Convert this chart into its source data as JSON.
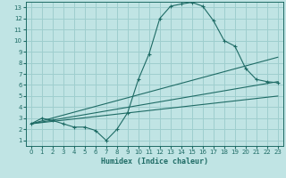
{
  "xlabel": "Humidex (Indice chaleur)",
  "xlim": [
    -0.5,
    23.5
  ],
  "ylim": [
    0.5,
    13.5
  ],
  "xticks": [
    0,
    1,
    2,
    3,
    4,
    5,
    6,
    7,
    8,
    9,
    10,
    11,
    12,
    13,
    14,
    15,
    16,
    17,
    18,
    19,
    20,
    21,
    22,
    23
  ],
  "yticks": [
    1,
    2,
    3,
    4,
    5,
    6,
    7,
    8,
    9,
    10,
    11,
    12,
    13
  ],
  "background_color": "#c0e4e4",
  "grid_color": "#9ecece",
  "line_color": "#1e6b65",
  "line1_x": [
    0,
    1,
    2,
    3,
    4,
    5,
    6,
    7,
    8,
    9,
    10,
    11,
    12,
    13,
    14,
    15,
    16,
    17,
    18,
    19,
    20,
    21,
    22,
    23
  ],
  "line1_y": [
    2.5,
    3.0,
    2.8,
    2.5,
    2.2,
    2.2,
    1.9,
    1.0,
    2.0,
    3.5,
    6.5,
    8.8,
    12.0,
    13.1,
    13.3,
    13.45,
    13.1,
    11.8,
    10.0,
    9.5,
    7.5,
    6.5,
    6.3,
    6.2
  ],
  "line2_x": [
    0,
    23
  ],
  "line2_y": [
    2.5,
    6.3
  ],
  "line3_x": [
    0,
    23
  ],
  "line3_y": [
    2.5,
    8.5
  ],
  "line4_x": [
    0,
    23
  ],
  "line4_y": [
    2.5,
    5.0
  ]
}
